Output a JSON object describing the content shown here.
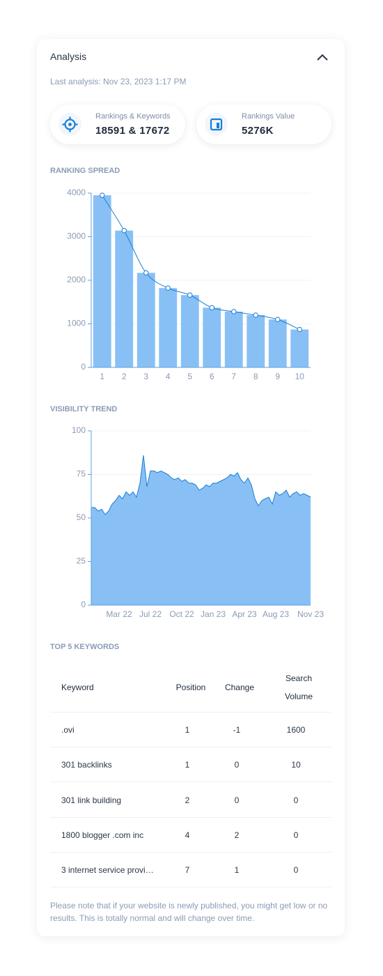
{
  "header": {
    "title": "Analysis",
    "last_analysis": "Last analysis: Nov 23, 2023 1:17 PM"
  },
  "stats": [
    {
      "label": "Rankings & Keywords",
      "value": "18591 & 17672"
    },
    {
      "label": "Rankings Value",
      "value": "5276K"
    }
  ],
  "chart_data": [
    {
      "type": "bar",
      "title": "RANKING SPREAD",
      "categories": [
        "1",
        "2",
        "3",
        "4",
        "5",
        "6",
        "7",
        "8",
        "9",
        "10"
      ],
      "values": [
        3950,
        3140,
        2170,
        1820,
        1660,
        1370,
        1280,
        1200,
        1100,
        870
      ],
      "color": "#88c0f5",
      "line_color": "#1a7fd4",
      "overlay_line": true,
      "ylim": [
        0,
        4000
      ],
      "yticks": [
        0,
        1000,
        2000,
        3000,
        4000
      ],
      "grid": true
    },
    {
      "type": "area",
      "title": "VISIBILITY TREND",
      "categories": [
        null,
        null,
        null,
        null,
        null,
        null,
        null,
        null,
        "Mar 22",
        null,
        null,
        null,
        null,
        null,
        null,
        null,
        null,
        "Jul 22",
        null,
        null,
        null,
        null,
        null,
        null,
        null,
        null,
        "Oct 22",
        null,
        null,
        null,
        null,
        null,
        null,
        null,
        null,
        "Jan 23",
        null,
        null,
        null,
        null,
        null,
        null,
        null,
        null,
        "Apr 23",
        null,
        null,
        null,
        null,
        null,
        null,
        null,
        null,
        "Aug 23",
        null,
        null,
        null,
        null,
        null,
        null,
        null,
        null,
        null,
        "Nov 23"
      ],
      "values": [
        56,
        56,
        54,
        55,
        52,
        54,
        58,
        60,
        63,
        61,
        65,
        63,
        65,
        62,
        70,
        86,
        68,
        77,
        77,
        76,
        77,
        76,
        75,
        73,
        72,
        73,
        71,
        72,
        70,
        70,
        69,
        66,
        67,
        69,
        68,
        70,
        70,
        71,
        72,
        73,
        75,
        74,
        76,
        72,
        70,
        73,
        69,
        61,
        57,
        60,
        61,
        62,
        58,
        65,
        63,
        64,
        66,
        62,
        64,
        65,
        63,
        64,
        63,
        62
      ],
      "color": "#88c0f5",
      "line_color": "#1a7fd4",
      "ylim": [
        0,
        100
      ],
      "yticks": [
        0,
        25,
        50,
        75,
        100
      ],
      "grid": true
    }
  ],
  "table": {
    "title": "TOP 5 KEYWORDS",
    "columns": [
      "Keyword",
      "Position",
      "Change",
      "Search Volume"
    ],
    "rows": [
      [
        ".ovi",
        1,
        -1,
        1600
      ],
      [
        "301 backlinks",
        1,
        0,
        10
      ],
      [
        "301 link building",
        2,
        0,
        0
      ],
      [
        "1800 blogger .com inc",
        4,
        2,
        0
      ],
      [
        "3 internet service provi…",
        7,
        1,
        0
      ]
    ]
  },
  "note": "Please note that if your website is newly published, you might get low or no results. This is totally normal and will change over time."
}
